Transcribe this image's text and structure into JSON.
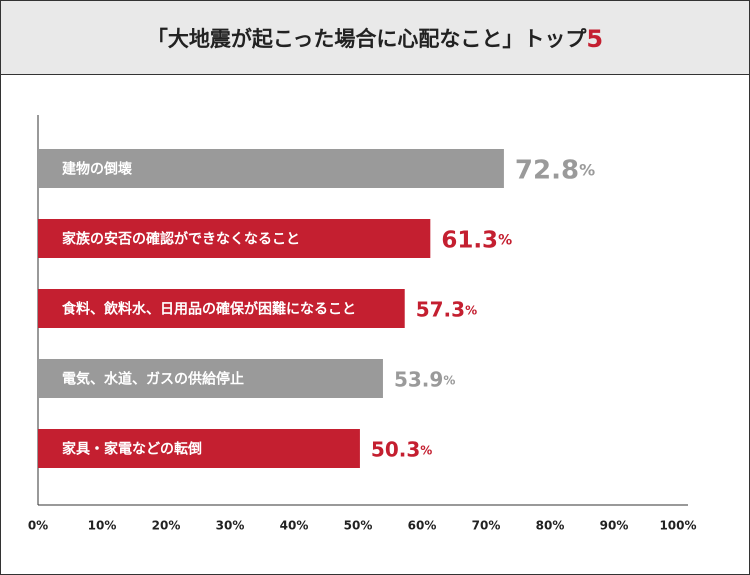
{
  "chart_data": {
    "type": "bar",
    "orientation": "horizontal",
    "title": "「大地震が起こった場合に心配なこと」トップ5",
    "categories": [
      "建物の倒壊",
      "家族の安否の確認ができなくなること",
      "食料、飲料水、日用品の確保が困難になること",
      "電気、水道、ガスの供給停止",
      "家具・家電などの転倒"
    ],
    "values": [
      72.8,
      61.3,
      57.3,
      53.9,
      50.3
    ],
    "value_labels": [
      "72.8%",
      "61.3%",
      "57.3%",
      "53.9%",
      "50.3%"
    ],
    "colors": [
      "#9a9a9a",
      "#c41f30",
      "#c41f30",
      "#9a9a9a",
      "#c41f30"
    ],
    "xlim": [
      0,
      100
    ],
    "xticks": [
      {
        "value": 0,
        "label": "0%"
      },
      {
        "value": 10,
        "label": "10%"
      },
      {
        "value": 20,
        "label": "20%"
      },
      {
        "value": 30,
        "label": "30%"
      },
      {
        "value": 40,
        "label": "40%"
      },
      {
        "value": 50,
        "label": "50%"
      },
      {
        "value": 60,
        "label": "60%"
      },
      {
        "value": 70,
        "label": "70%"
      },
      {
        "value": 80,
        "label": "80%"
      },
      {
        "value": 90,
        "label": "90%"
      },
      {
        "value": 100,
        "label": "100%"
      }
    ],
    "title_accent_color": "#c41f30"
  }
}
